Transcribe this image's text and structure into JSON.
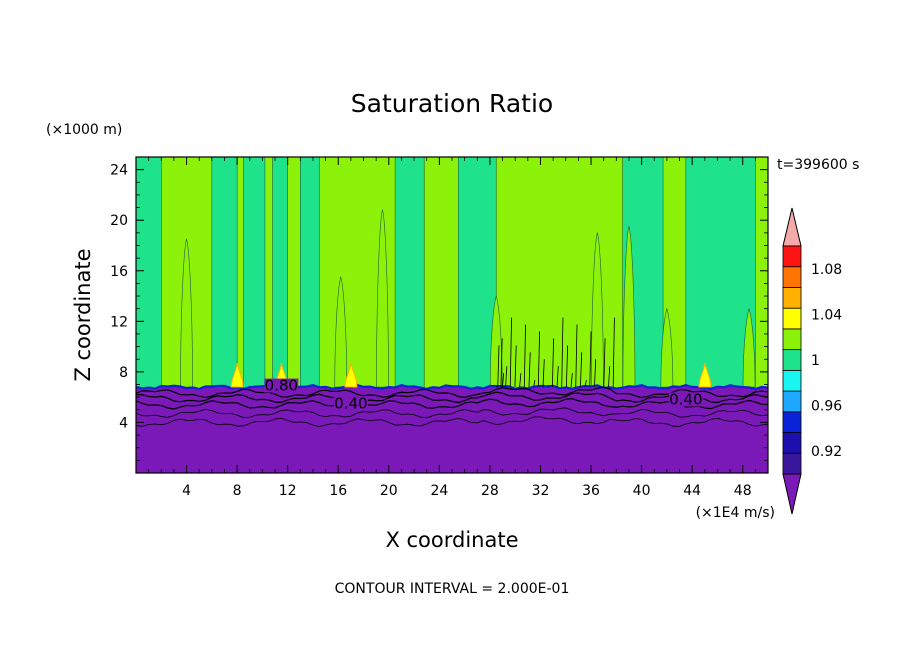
{
  "chart_data": {
    "type": "heatmap",
    "title": "Saturation Ratio",
    "xlabel": "X coordinate",
    "ylabel": "Z coordinate",
    "x_unit": "(×1E4 m/s)",
    "y_unit": "(×1000 m)",
    "time_label": "t=399600 s",
    "footer": "CONTOUR INTERVAL = 2.000E-01",
    "xlim": [
      0,
      50
    ],
    "ylim": [
      0,
      25
    ],
    "x_ticks": [
      4,
      8,
      12,
      16,
      20,
      24,
      28,
      32,
      36,
      40,
      44,
      48
    ],
    "y_ticks": [
      4,
      8,
      12,
      16,
      20,
      24
    ],
    "contour_labels": [
      {
        "text": "0.80",
        "x": 11.5,
        "z": 6.6
      },
      {
        "text": "0.40",
        "x": 17.0,
        "z": 5.2
      },
      {
        "text": "0.40",
        "x": 43.5,
        "z": 5.5
      }
    ],
    "colorbar": {
      "levels": [
        0.9,
        0.92,
        0.94,
        0.96,
        0.98,
        1.0,
        1.02,
        1.04,
        1.06,
        1.08,
        1.1
      ],
      "colors": [
        "#3a169c",
        "#1c0fae",
        "#0a22d8",
        "#1fa8ff",
        "#19f5f0",
        "#1fe38b",
        "#8cf20a",
        "#ffff00",
        "#ffb000",
        "#ff7300",
        "#ff1414"
      ],
      "under_color": "#7a18b8",
      "over_color": "#f5a9aa",
      "tick_labels": [
        "0.92",
        "0.96",
        "1",
        "1.04",
        "1.08"
      ],
      "tick_values": [
        0.92,
        0.96,
        1.0,
        1.04,
        1.08
      ]
    },
    "field": {
      "cloud_base_z": 6.8,
      "lower_layer_color": "#7a18b8",
      "green_columns_x": [
        [
          0,
          2
        ],
        [
          6,
          8
        ],
        [
          8.5,
          10.2
        ],
        [
          10.8,
          12
        ],
        [
          13,
          14.5
        ],
        [
          20.5,
          22.8
        ],
        [
          25.5,
          28.5
        ],
        [
          38.5,
          41.7
        ],
        [
          43.5,
          49
        ]
      ],
      "cloud_bursts_x": [
        8,
        11.5,
        17,
        45
      ]
    }
  }
}
